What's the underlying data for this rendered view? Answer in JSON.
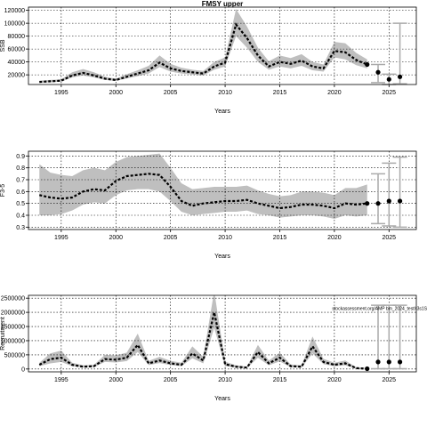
{
  "chart_data": [
    {
      "type": "line",
      "title": "FMSY upper",
      "xlabel": "Years",
      "ylabel": "SSB",
      "xlim": [
        1992,
        2027.5
      ],
      "ylim": [
        5000,
        125000
      ],
      "x_ticks": [
        1995,
        2000,
        2005,
        2010,
        2015,
        2020,
        2025
      ],
      "y_ticks": [
        20000,
        40000,
        60000,
        80000,
        100000,
        120000
      ],
      "y_tick_labels": [
        "20000",
        "40000",
        "60000",
        "80000",
        "100000",
        "120000"
      ],
      "grid": true,
      "band_color": "#bfbfbf",
      "years": [
        1993,
        1994,
        1995,
        1996,
        1997,
        1998,
        1999,
        2000,
        2001,
        2002,
        2003,
        2004,
        2005,
        2006,
        2007,
        2008,
        2009,
        2010,
        2011,
        2012,
        2013,
        2014,
        2015,
        2016,
        2017,
        2018,
        2019,
        2020,
        2021,
        2022,
        2023
      ],
      "median": [
        9000,
        10000,
        11000,
        19000,
        23000,
        19000,
        14000,
        12000,
        17000,
        22000,
        27000,
        39000,
        30000,
        26000,
        24000,
        22000,
        33000,
        39000,
        98000,
        77000,
        50000,
        33000,
        40000,
        37000,
        42000,
        33000,
        30000,
        57000,
        55000,
        43000,
        36000
      ],
      "low": [
        8000,
        8500,
        9500,
        16000,
        19000,
        16000,
        12000,
        10500,
        14500,
        18000,
        22000,
        32000,
        25000,
        22000,
        20500,
        19000,
        28000,
        33000,
        80000,
        62000,
        40000,
        28000,
        33000,
        30000,
        34000,
        27000,
        25000,
        47000,
        44000,
        35000,
        30000
      ],
      "high": [
        11000,
        12000,
        13000,
        24000,
        29000,
        24000,
        17000,
        14000,
        21000,
        27000,
        34000,
        50000,
        37000,
        31000,
        28000,
        26000,
        40000,
        47000,
        122000,
        95000,
        62000,
        41000,
        50000,
        46000,
        52000,
        40000,
        36000,
        71000,
        69000,
        54000,
        44000
      ],
      "forecast": [
        {
          "year": 2024,
          "value": 24000,
          "low": 8000,
          "high": 36000
        },
        {
          "year": 2025,
          "value": 13000,
          "low": 5000,
          "high": 21000
        },
        {
          "year": 2026,
          "value": 17000,
          "low": 6000,
          "high": 100000
        }
      ]
    },
    {
      "type": "line",
      "title": "",
      "xlabel": "Years",
      "ylabel": "F3-5",
      "xlim": [
        1992,
        2027.5
      ],
      "ylim": [
        0.28,
        0.94
      ],
      "x_ticks": [
        1995,
        2000,
        2005,
        2010,
        2015,
        2020,
        2025
      ],
      "y_ticks": [
        0.3,
        0.4,
        0.5,
        0.6,
        0.7,
        0.8,
        0.9
      ],
      "y_tick_labels": [
        "0.3",
        "0.4",
        "0.5",
        "0.6",
        "0.7",
        "0.8",
        "0.9"
      ],
      "grid": true,
      "band_color": "#bfbfbf",
      "years": [
        1993,
        1994,
        1995,
        1996,
        1997,
        1998,
        1999,
        2000,
        2001,
        2002,
        2003,
        2004,
        2005,
        2006,
        2007,
        2008,
        2009,
        2010,
        2011,
        2012,
        2013,
        2014,
        2015,
        2016,
        2017,
        2018,
        2019,
        2020,
        2021,
        2022,
        2023
      ],
      "median": [
        0.57,
        0.55,
        0.54,
        0.55,
        0.6,
        0.62,
        0.61,
        0.69,
        0.73,
        0.74,
        0.75,
        0.74,
        0.64,
        0.52,
        0.48,
        0.5,
        0.51,
        0.52,
        0.52,
        0.53,
        0.5,
        0.48,
        0.46,
        0.47,
        0.49,
        0.49,
        0.48,
        0.46,
        0.5,
        0.49,
        0.5
      ],
      "low": [
        0.4,
        0.4,
        0.41,
        0.44,
        0.49,
        0.51,
        0.5,
        0.57,
        0.61,
        0.62,
        0.62,
        0.6,
        0.52,
        0.43,
        0.4,
        0.41,
        0.42,
        0.43,
        0.43,
        0.44,
        0.41,
        0.4,
        0.38,
        0.39,
        0.4,
        0.4,
        0.39,
        0.37,
        0.4,
        0.39,
        0.4
      ],
      "high": [
        0.83,
        0.76,
        0.74,
        0.73,
        0.78,
        0.8,
        0.78,
        0.85,
        0.89,
        0.9,
        0.91,
        0.92,
        0.8,
        0.67,
        0.62,
        0.63,
        0.64,
        0.64,
        0.64,
        0.65,
        0.61,
        0.58,
        0.56,
        0.57,
        0.6,
        0.6,
        0.59,
        0.57,
        0.63,
        0.63,
        0.66
      ],
      "forecast": [
        {
          "year": 2024,
          "value": 0.5,
          "low": 0.33,
          "high": 0.75
        },
        {
          "year": 2025,
          "value": 0.52,
          "low": 0.31,
          "high": 0.84
        },
        {
          "year": 2026,
          "value": 0.52,
          "low": 0.3,
          "high": 0.89
        }
      ]
    },
    {
      "type": "line",
      "title": "",
      "xlabel": "Years",
      "ylabel": "Recruitment",
      "xlim": [
        1992,
        2027.5
      ],
      "ylim": [
        -100000,
        2600000
      ],
      "x_ticks": [
        1995,
        2000,
        2005,
        2010,
        2015,
        2020,
        2025
      ],
      "y_ticks": [
        0,
        500000,
        1000000,
        1500000,
        2000000,
        2500000
      ],
      "y_tick_labels": [
        "0",
        "500000",
        "1000000",
        "1500000",
        "2000000",
        "2500000"
      ],
      "grid": true,
      "band_color": "#bfbfbf",
      "annotation": "stockassessment.org/AMP bm_2024_test/r3s1S5_ghaCccc25a0c6",
      "annotation_x": 2019.8,
      "annotation_y": 2080000,
      "years": [
        1993,
        1994,
        1995,
        1996,
        1997,
        1998,
        1999,
        2000,
        2001,
        2002,
        2003,
        2004,
        2005,
        2006,
        2007,
        2008,
        2009,
        2010,
        2011,
        2012,
        2013,
        2014,
        2015,
        2016,
        2017,
        2018,
        2019,
        2020,
        2021,
        2022,
        2023
      ],
      "median": [
        150000,
        350000,
        400000,
        150000,
        80000,
        100000,
        350000,
        330000,
        400000,
        850000,
        200000,
        300000,
        200000,
        150000,
        550000,
        300000,
        2000000,
        170000,
        80000,
        50000,
        600000,
        200000,
        400000,
        100000,
        80000,
        800000,
        250000,
        150000,
        200000,
        30000,
        10000
      ],
      "low": [
        100000,
        200000,
        250000,
        100000,
        50000,
        70000,
        250000,
        230000,
        280000,
        600000,
        140000,
        210000,
        140000,
        100000,
        380000,
        200000,
        1450000,
        110000,
        50000,
        30000,
        400000,
        130000,
        270000,
        60000,
        50000,
        550000,
        170000,
        100000,
        130000,
        15000,
        5000
      ],
      "high": [
        220000,
        550000,
        650000,
        220000,
        130000,
        150000,
        500000,
        480000,
        580000,
        1250000,
        290000,
        430000,
        290000,
        220000,
        800000,
        430000,
        2750000,
        260000,
        130000,
        80000,
        850000,
        300000,
        580000,
        160000,
        130000,
        1150000,
        360000,
        220000,
        300000,
        60000,
        30000
      ],
      "forecast": [
        {
          "year": 2024,
          "value": 250000,
          "low": 10000,
          "high": 2250000
        },
        {
          "year": 2025,
          "value": 250000,
          "low": 10000,
          "high": 2250000
        },
        {
          "year": 2026,
          "value": 250000,
          "low": 10000,
          "high": 2250000
        }
      ]
    }
  ]
}
